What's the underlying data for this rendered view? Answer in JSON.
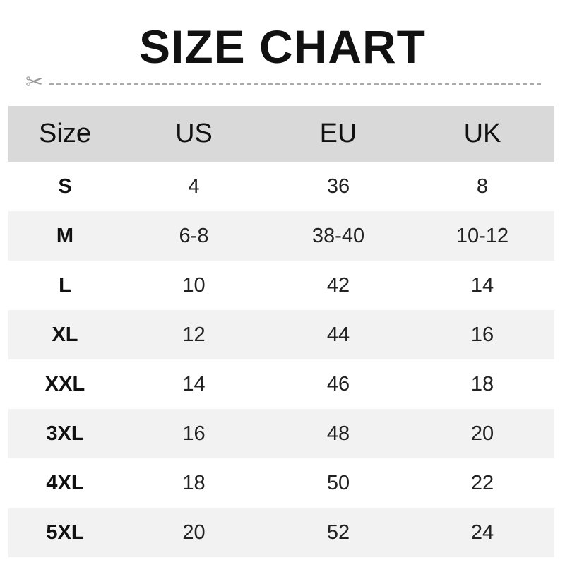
{
  "title": "SIZE CHART",
  "icons": {
    "cut": "scissors-icon"
  },
  "table": {
    "headers": [
      "Size",
      "US",
      "EU",
      "UK"
    ],
    "rows": [
      [
        "S",
        "4",
        "36",
        "8"
      ],
      [
        "M",
        "6-8",
        "38-40",
        "10-12"
      ],
      [
        "L",
        "10",
        "42",
        "14"
      ],
      [
        "XL",
        "12",
        "44",
        "16"
      ],
      [
        "XXL",
        "14",
        "46",
        "18"
      ],
      [
        "3XL",
        "16",
        "48",
        "20"
      ],
      [
        "4XL",
        "18",
        "50",
        "22"
      ],
      [
        "5XL",
        "20",
        "52",
        "24"
      ]
    ]
  }
}
